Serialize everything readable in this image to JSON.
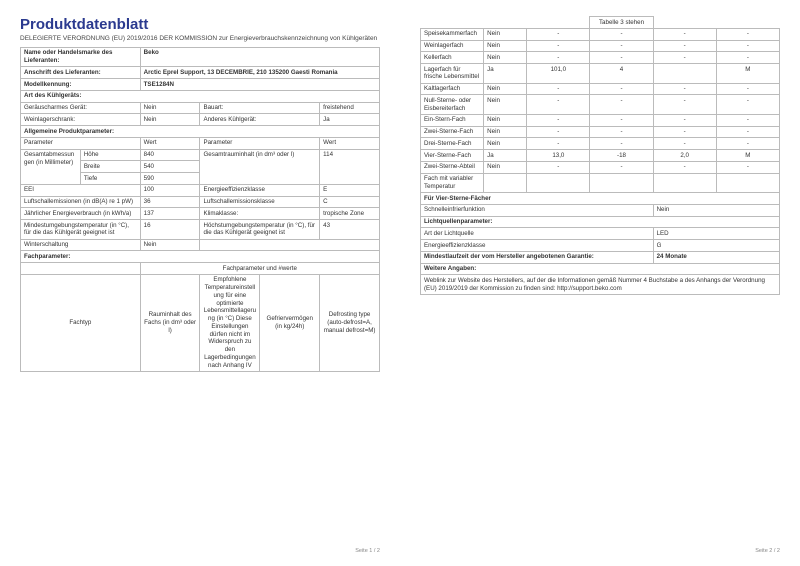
{
  "title": "Produktdatenblatt",
  "subtitle": "DELEGIERTE VERORDNUNG (EU) 2019/2016 DER KOMMISSION zur Energieverbrauchskennzeichnung von Kühlgeräten",
  "supplier_name_label": "Name oder Handelsmarke des Lieferanten:",
  "supplier_name": "Beko",
  "supplier_addr_label": "Anschrift des Lieferanten:",
  "supplier_addr": "Arctic Eprel Support, 13 DECEMBRIE, 210 135200 Gaesti Romania",
  "model_label": "Modellkennung:",
  "model": "TSE1284N",
  "type_label": "Art des Kühlgeräts:",
  "low_noise_label": "Geräuscharmes Gerät:",
  "low_noise": "Nein",
  "design_label": "Bauart:",
  "design": "freistehend",
  "wine_label": "Weinlagerschrank:",
  "wine": "Nein",
  "other_label": "Anderes Kühlgerät:",
  "other": "Ja",
  "gen_params": "Allgemeine Produktparameter:",
  "p_param": "Parameter",
  "p_wert": "Wert",
  "dims_label": "Gesamtabmessungen (in Millimeter)",
  "hohe": "Höhe",
  "hohe_v": "840",
  "breite": "Breite",
  "breite_v": "540",
  "tiefe": "Tiefe",
  "tiefe_v": "590",
  "totvol_label": "Gesamtrauminhalt (in dm³ oder l)",
  "totvol": "114",
  "eei": "EEI",
  "eei_v": "100",
  "eec": "Energieeffizienzklasse",
  "eec_v": "E",
  "noise": "Luftschallemissionen (in dB(A) re 1 pW)",
  "noise_v": "36",
  "noise_c": "Luftschallemissionsklasse",
  "noise_cv": "C",
  "annual": "Jährlicher Energieverbrauch (in kWh/a)",
  "annual_v": "137",
  "clim": "Klimaklasse:",
  "clim_v": "tropische Zone",
  "mintemp": "Mindestumgebungstemperatur (in °C), für die das Kühlgerät geeignet ist",
  "mintemp_v": "16",
  "maxtemp": "Höchstumgebungstemperatur (in °C), für die das Kühlgerät geeignet ist",
  "maxtemp_v": "43",
  "winter": "Winterschaltung",
  "winter_v": "Nein",
  "fachparam": "Fachparameter:",
  "fachparam_w": "Fachparameter und #werte",
  "c_fachtyp": "Fachtyp",
  "c_raum": "Rauminhalt des Fachs (in dm³ oder l)",
  "c_temp": "Empfohlene Temperatureinstellung für eine optimierte Lebensmittellagerung (in °C) Diese Einstellungen dürfen nicht im Widerspruch zu den Lagerbedingungen nach Anhang IV",
  "c_gef": "Gefriervermögen (in kg/24h)",
  "c_def": "Defrosting type (auto-defrost=A, manual defrost=M)",
  "tab3": "Tabelle 3 stehen",
  "rows": [
    {
      "n": "Speisekammerfach",
      "y": "Nein",
      "a": "-",
      "b": "-",
      "c": "-",
      "d": "-"
    },
    {
      "n": "Weinlagerfach",
      "y": "Nein",
      "a": "-",
      "b": "-",
      "c": "-",
      "d": "-"
    },
    {
      "n": "Kellerfach",
      "y": "Nein",
      "a": "-",
      "b": "-",
      "c": "-",
      "d": "-"
    },
    {
      "n": "Lagerfach für frische Lebensmittel",
      "y": "Ja",
      "a": "101,0",
      "b": "4",
      "c": "",
      "d": "M"
    },
    {
      "n": "Kaltlagerfach",
      "y": "Nein",
      "a": "-",
      "b": "-",
      "c": "-",
      "d": "-"
    },
    {
      "n": "Null-Sterne- oder Eisbereiterfach",
      "y": "Nein",
      "a": "-",
      "b": "-",
      "c": "-",
      "d": "-"
    },
    {
      "n": "Ein-Stern-Fach",
      "y": "Nein",
      "a": "-",
      "b": "-",
      "c": "-",
      "d": "-"
    },
    {
      "n": "Zwei-Sterne-Fach",
      "y": "Nein",
      "a": "-",
      "b": "-",
      "c": "-",
      "d": "-"
    },
    {
      "n": "Drei-Sterne-Fach",
      "y": "Nein",
      "a": "-",
      "b": "-",
      "c": "-",
      "d": "-"
    },
    {
      "n": "Vier-Sterne-Fach",
      "y": "Ja",
      "a": "13,0",
      "b": "-18",
      "c": "2,0",
      "d": "M"
    },
    {
      "n": "Zwei-Sterne-Abteil",
      "y": "Nein",
      "a": "-",
      "b": "-",
      "c": "-",
      "d": "-"
    },
    {
      "n": "Fach mit variabler Temperatur",
      "y": "",
      "a": "",
      "b": "",
      "c": "",
      "d": ""
    }
  ],
  "four_star": "Für Vier-Sterne-Fächer",
  "fastfreeze": "Schnelleinfrierfunktion",
  "fastfreeze_v": "Nein",
  "light_params": "Lichtquellenparameter:",
  "light_type": "Art der Lichtquelle",
  "light_type_v": "LED",
  "light_eec": "Energieeffizienzklasse",
  "light_eec_v": "G",
  "warranty_label": "Mindestlaufzeit der vom Hersteller angebotenen Garantie:",
  "warranty": "24 Monate",
  "more": "Weitere Angaben:",
  "weblink": "Weblink zur Website des Herstellers, auf der die Informationen gemäß Nummer 4 Buchstabe a des Anhangs der Verordnung (EU) 2019/2019 der Kommission zu finden sind:  http://support.beko.com",
  "pg1": "Seite 1 / 2",
  "pg2": "Seite 2 / 2"
}
